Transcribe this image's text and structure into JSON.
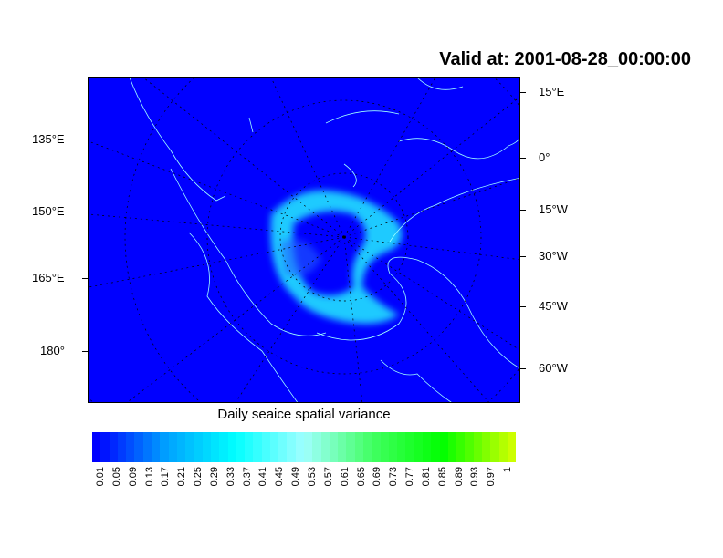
{
  "title": "Valid at: 2001-08-28_00:00:00",
  "map": {
    "field": "sea ice spatial variance",
    "projection": "polar stereographic (north pole)",
    "background_color": "#0000ff",
    "coastline_color": "#a0ffff",
    "left_labels": [
      "135°E",
      "150°E",
      "165°E",
      "180°"
    ],
    "right_labels": [
      "15°E",
      "0°",
      "15°W",
      "30°W",
      "45°W",
      "60°W"
    ]
  },
  "colorbar": {
    "title": "Daily seaice spatial variance",
    "labels": [
      "0.01",
      "0.05",
      "0.09",
      "0.13",
      "0.17",
      "0.21",
      "0.25",
      "0.29",
      "0.33",
      "0.37",
      "0.41",
      "0.45",
      "0.49",
      "0.53",
      "0.57",
      "0.61",
      "0.65",
      "0.69",
      "0.73",
      "0.77",
      "0.81",
      "0.85",
      "0.89",
      "0.93",
      "0.97",
      "1"
    ],
    "color_stops": [
      "#0000ff",
      "#00a0ff",
      "#00ffff",
      "#a0ffff",
      "#40ff60",
      "#00ff00",
      "#ccff00"
    ]
  }
}
